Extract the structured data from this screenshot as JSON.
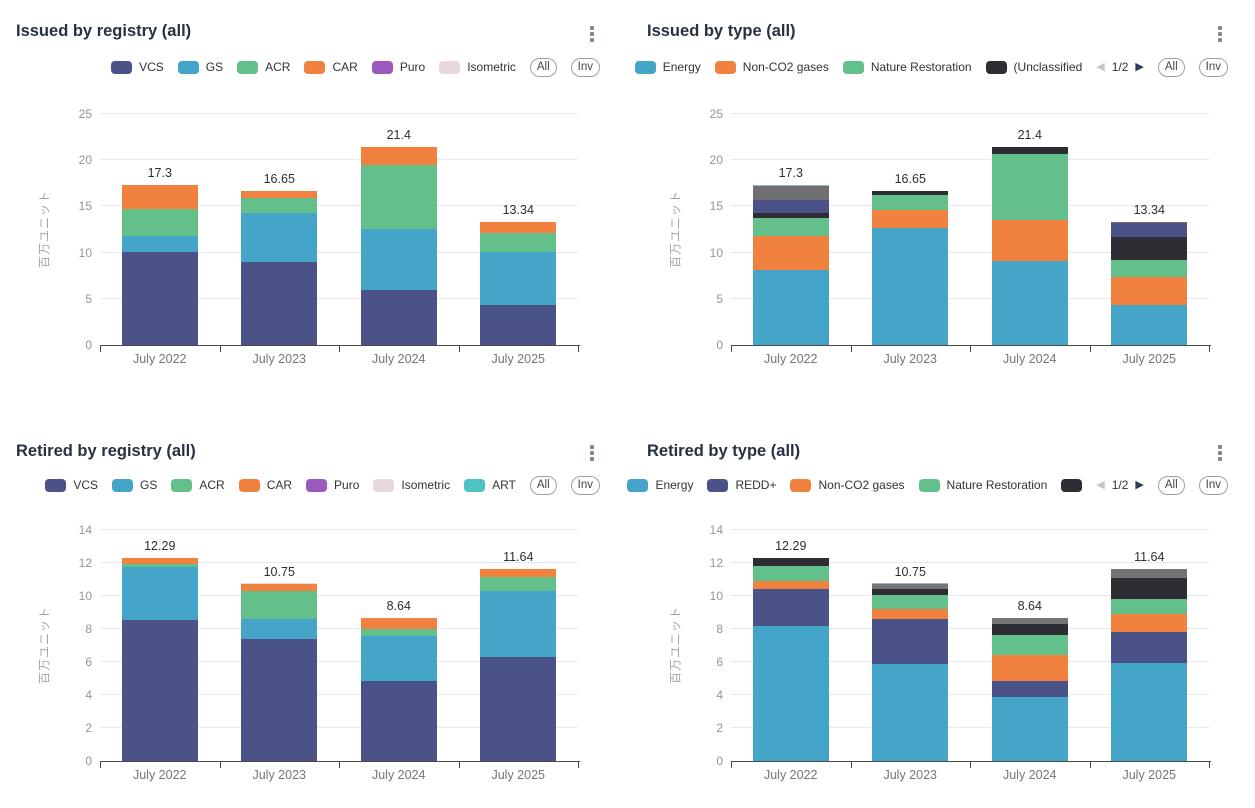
{
  "y_axis_label": "百万ユニット",
  "legend_controls": {
    "all": "All",
    "inv": "Inv",
    "page": "1/2"
  },
  "colors": {
    "navy": "#4a5287",
    "teal": "#44a5c8",
    "green": "#63c08a",
    "orange": "#f0813f",
    "purple": "#9c59bd",
    "pale_pink": "#e8d7dc",
    "turquoise": "#4dc3c3",
    "black": "#2d2d33",
    "gray": "#6f6f72",
    "light_blue": "#96b9cd",
    "gridline": "#e6e9f3",
    "axis": "#4a4a4a"
  },
  "chart_data": [
    {
      "type": "bar",
      "title": "Issued by registry (all)",
      "ylabel": "百万ユニット",
      "ymax": 25,
      "yticks": [
        0,
        5,
        10,
        15,
        20,
        25
      ],
      "categories": [
        "July 2022",
        "July 2023",
        "July 2024",
        "July 2025"
      ],
      "totals": [
        "17.3",
        "16.65",
        "21.4",
        "13.34"
      ],
      "pager": false,
      "legend": [
        {
          "label": "VCS",
          "color": "#4a5287"
        },
        {
          "label": "GS",
          "color": "#44a5c8"
        },
        {
          "label": "ACR",
          "color": "#63c08a"
        },
        {
          "label": "CAR",
          "color": "#f0813f"
        },
        {
          "label": "Puro",
          "color": "#9c59bd"
        },
        {
          "label": "Isometric",
          "color": "#e8d7dc"
        }
      ],
      "series": [
        {
          "name": "VCS",
          "color": "#4a5287",
          "values": [
            10.05,
            9.0,
            5.9,
            4.3
          ]
        },
        {
          "name": "GS",
          "color": "#44a5c8",
          "values": [
            1.75,
            5.3,
            6.7,
            5.8
          ]
        },
        {
          "name": "ACR",
          "color": "#63c08a",
          "values": [
            2.95,
            1.6,
            6.9,
            2.0
          ]
        },
        {
          "name": "CAR",
          "color": "#f0813f",
          "values": [
            2.55,
            0.75,
            1.9,
            1.24
          ]
        },
        {
          "name": "Puro",
          "color": "#9c59bd",
          "values": [
            0,
            0,
            0,
            0
          ]
        },
        {
          "name": "Isometric",
          "color": "#e8d7dc",
          "values": [
            0,
            0,
            0,
            0
          ]
        }
      ]
    },
    {
      "type": "bar",
      "title": "Issued by type (all)",
      "ylabel": "百万ユニット",
      "ymax": 25,
      "yticks": [
        0,
        5,
        10,
        15,
        20,
        25
      ],
      "categories": [
        "July 2022",
        "July 2023",
        "July 2024",
        "July 2025"
      ],
      "totals": [
        "17.3",
        "16.65",
        "21.4",
        "13.34"
      ],
      "pager": true,
      "legend": [
        {
          "label": "Energy",
          "color": "#44a5c8"
        },
        {
          "label": "Non-CO2 gases",
          "color": "#f0813f"
        },
        {
          "label": "Nature Restoration",
          "color": "#63c08a"
        },
        {
          "label": "(Unclassified",
          "color": "#2d2d33"
        }
      ],
      "series": [
        {
          "name": "Energy",
          "color": "#44a5c8",
          "values": [
            8.1,
            12.7,
            9.05,
            4.3
          ]
        },
        {
          "name": "Non-CO2 gases",
          "color": "#f0813f",
          "values": [
            3.65,
            1.95,
            4.5,
            3.05
          ]
        },
        {
          "name": "Nature Restoration",
          "color": "#63c08a",
          "values": [
            1.95,
            1.6,
            7.1,
            1.8
          ]
        },
        {
          "name": "(Unclassified",
          "color": "#2d2d33",
          "values": [
            0.55,
            0.4,
            0.75,
            2.55
          ]
        },
        {
          "name": "unlabeled-navy",
          "color": "#4a5287",
          "values": [
            1.45,
            0,
            0,
            1.5
          ]
        },
        {
          "name": "unlabeled-gray",
          "color": "#6f6f72",
          "values": [
            1.5,
            0,
            0,
            0.14
          ]
        },
        {
          "name": "unlabeled-lightblue",
          "color": "#96b9cd",
          "values": [
            0.1,
            0,
            0,
            0
          ]
        }
      ]
    },
    {
      "type": "bar",
      "title": "Retired by registry (all)",
      "ylabel": "百万ユニット",
      "ymax": 14,
      "yticks": [
        0,
        2,
        4,
        6,
        8,
        10,
        12,
        14
      ],
      "categories": [
        "July 2022",
        "July 2023",
        "July 2024",
        "July 2025"
      ],
      "totals": [
        "12.29",
        "10.75",
        "8.64",
        "11.64"
      ],
      "pager": false,
      "legend": [
        {
          "label": "VCS",
          "color": "#4a5287"
        },
        {
          "label": "GS",
          "color": "#44a5c8"
        },
        {
          "label": "ACR",
          "color": "#63c08a"
        },
        {
          "label": "CAR",
          "color": "#f0813f"
        },
        {
          "label": "Puro",
          "color": "#9c59bd"
        },
        {
          "label": "Isometric",
          "color": "#e8d7dc"
        },
        {
          "label": "ART",
          "color": "#4dc3c3"
        }
      ],
      "series": [
        {
          "name": "VCS",
          "color": "#4a5287",
          "values": [
            8.55,
            7.4,
            4.85,
            6.3
          ]
        },
        {
          "name": "GS",
          "color": "#44a5c8",
          "values": [
            3.2,
            1.2,
            2.7,
            4.0
          ]
        },
        {
          "name": "ACR",
          "color": "#63c08a",
          "values": [
            0.22,
            1.73,
            0.47,
            0.85
          ]
        },
        {
          "name": "CAR",
          "color": "#f0813f",
          "values": [
            0.32,
            0.37,
            0.62,
            0.49
          ]
        },
        {
          "name": "Puro",
          "color": "#9c59bd",
          "values": [
            0,
            0,
            0,
            0
          ]
        },
        {
          "name": "Isometric",
          "color": "#e8d7dc",
          "values": [
            0,
            0.05,
            0,
            0
          ]
        },
        {
          "name": "ART",
          "color": "#4dc3c3",
          "values": [
            0,
            0,
            0,
            0
          ]
        }
      ]
    },
    {
      "type": "bar",
      "title": "Retired by type (all)",
      "ylabel": "百万ユニット",
      "ymax": 14,
      "yticks": [
        0,
        2,
        4,
        6,
        8,
        10,
        12,
        14
      ],
      "categories": [
        "July 2022",
        "July 2023",
        "July 2024",
        "July 2025"
      ],
      "totals": [
        "12.29",
        "10.75",
        "8.64",
        "11.64"
      ],
      "pager": true,
      "legend": [
        {
          "label": "Energy",
          "color": "#44a5c8"
        },
        {
          "label": "REDD+",
          "color": "#4a5287"
        },
        {
          "label": "Non-CO2 gases",
          "color": "#f0813f"
        },
        {
          "label": "Nature Restoration",
          "color": "#63c08a"
        },
        {
          "label": "",
          "color": "#2d2d33"
        }
      ],
      "series": [
        {
          "name": "Energy",
          "color": "#44a5c8",
          "values": [
            8.2,
            5.9,
            3.85,
            5.95
          ]
        },
        {
          "name": "REDD+",
          "color": "#4a5287",
          "values": [
            2.25,
            2.7,
            1.0,
            1.85
          ]
        },
        {
          "name": "Non-CO2 gases",
          "color": "#f0813f",
          "values": [
            0.45,
            0.6,
            1.6,
            1.1
          ]
        },
        {
          "name": "Nature Restoration",
          "color": "#63c08a",
          "values": [
            0.9,
            0.85,
            1.2,
            0.9
          ]
        },
        {
          "name": "unlabeled-black",
          "color": "#2d2d33",
          "values": [
            0.49,
            0.4,
            0.65,
            1.27
          ]
        },
        {
          "name": "unlabeled-gray",
          "color": "#737476",
          "values": [
            0,
            0.25,
            0.34,
            0.57
          ]
        },
        {
          "name": "unlabeled-lightblue",
          "color": "#96b9cd",
          "values": [
            0,
            0.05,
            0,
            0
          ]
        }
      ]
    }
  ]
}
